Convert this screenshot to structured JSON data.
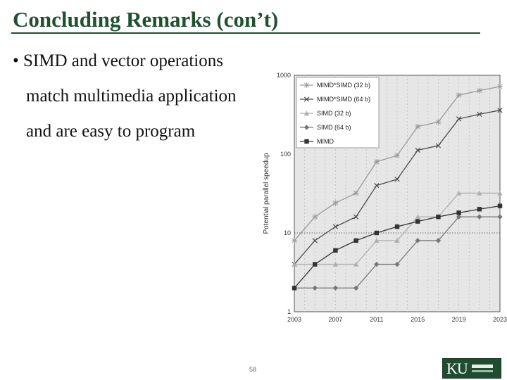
{
  "slide": {
    "title": "Concluding Remarks (con’t)",
    "bullet": {
      "marker": "•",
      "lines": [
        "SIMD and vector operations",
        "match multimedia application",
        "and are easy to program"
      ]
    },
    "slide_number": "58"
  },
  "chart_data": {
    "type": "line",
    "ylabel": "Potential parallel speedup",
    "yscale": "log",
    "ylim": [
      1,
      1000
    ],
    "ytick_labels": [
      "1",
      "10",
      "100",
      "1000"
    ],
    "x": [
      2003,
      2004,
      2005,
      2006,
      2007,
      2008,
      2009,
      2010,
      2011,
      2012,
      2013,
      2014,
      2015,
      2016,
      2017,
      2018,
      2019,
      2020,
      2021,
      2022,
      2023
    ],
    "xtick_labels": [
      "2003",
      "2007",
      "2011",
      "2015",
      "2019",
      "2023"
    ],
    "grid": "vertical-dashed",
    "reference_line_y": 10,
    "legend_position": "top-left",
    "series": [
      {
        "name": "MIMD*SIMD (32 b)",
        "color": "#9a9a9a",
        "marker": "star",
        "points": [
          [
            2003,
            8
          ],
          [
            2005,
            16
          ],
          [
            2007,
            24
          ],
          [
            2009,
            32
          ],
          [
            2011,
            80
          ],
          [
            2013,
            96
          ],
          [
            2015,
            224
          ],
          [
            2017,
            256
          ],
          [
            2019,
            560
          ],
          [
            2021,
            640
          ],
          [
            2023,
            720
          ]
        ]
      },
      {
        "name": "MIMD*SIMD (64 b)",
        "color": "#4a4a4a",
        "marker": "x",
        "points": [
          [
            2003,
            4
          ],
          [
            2005,
            8
          ],
          [
            2007,
            12
          ],
          [
            2009,
            16
          ],
          [
            2011,
            40
          ],
          [
            2013,
            48
          ],
          [
            2015,
            112
          ],
          [
            2017,
            128
          ],
          [
            2019,
            280
          ],
          [
            2021,
            320
          ],
          [
            2023,
            360
          ]
        ]
      },
      {
        "name": "SIMD (32 b)",
        "color": "#b0b0b0",
        "marker": "triangle",
        "points": [
          [
            2003,
            4
          ],
          [
            2005,
            4
          ],
          [
            2007,
            4
          ],
          [
            2009,
            4
          ],
          [
            2011,
            8
          ],
          [
            2013,
            8
          ],
          [
            2015,
            16
          ],
          [
            2017,
            16
          ],
          [
            2019,
            32
          ],
          [
            2021,
            32
          ],
          [
            2023,
            32
          ]
        ]
      },
      {
        "name": "SIMD (64 b)",
        "color": "#777777",
        "marker": "diamond",
        "points": [
          [
            2003,
            2
          ],
          [
            2005,
            2
          ],
          [
            2007,
            2
          ],
          [
            2009,
            2
          ],
          [
            2011,
            4
          ],
          [
            2013,
            4
          ],
          [
            2015,
            8
          ],
          [
            2017,
            8
          ],
          [
            2019,
            16
          ],
          [
            2021,
            16
          ],
          [
            2023,
            16
          ]
        ]
      },
      {
        "name": "MIMD",
        "color": "#333333",
        "marker": "square",
        "points": [
          [
            2003,
            2
          ],
          [
            2005,
            4
          ],
          [
            2007,
            6
          ],
          [
            2009,
            8
          ],
          [
            2011,
            10
          ],
          [
            2013,
            12
          ],
          [
            2015,
            14
          ],
          [
            2017,
            16
          ],
          [
            2019,
            18
          ],
          [
            2021,
            20
          ],
          [
            2023,
            22
          ]
        ]
      }
    ]
  }
}
